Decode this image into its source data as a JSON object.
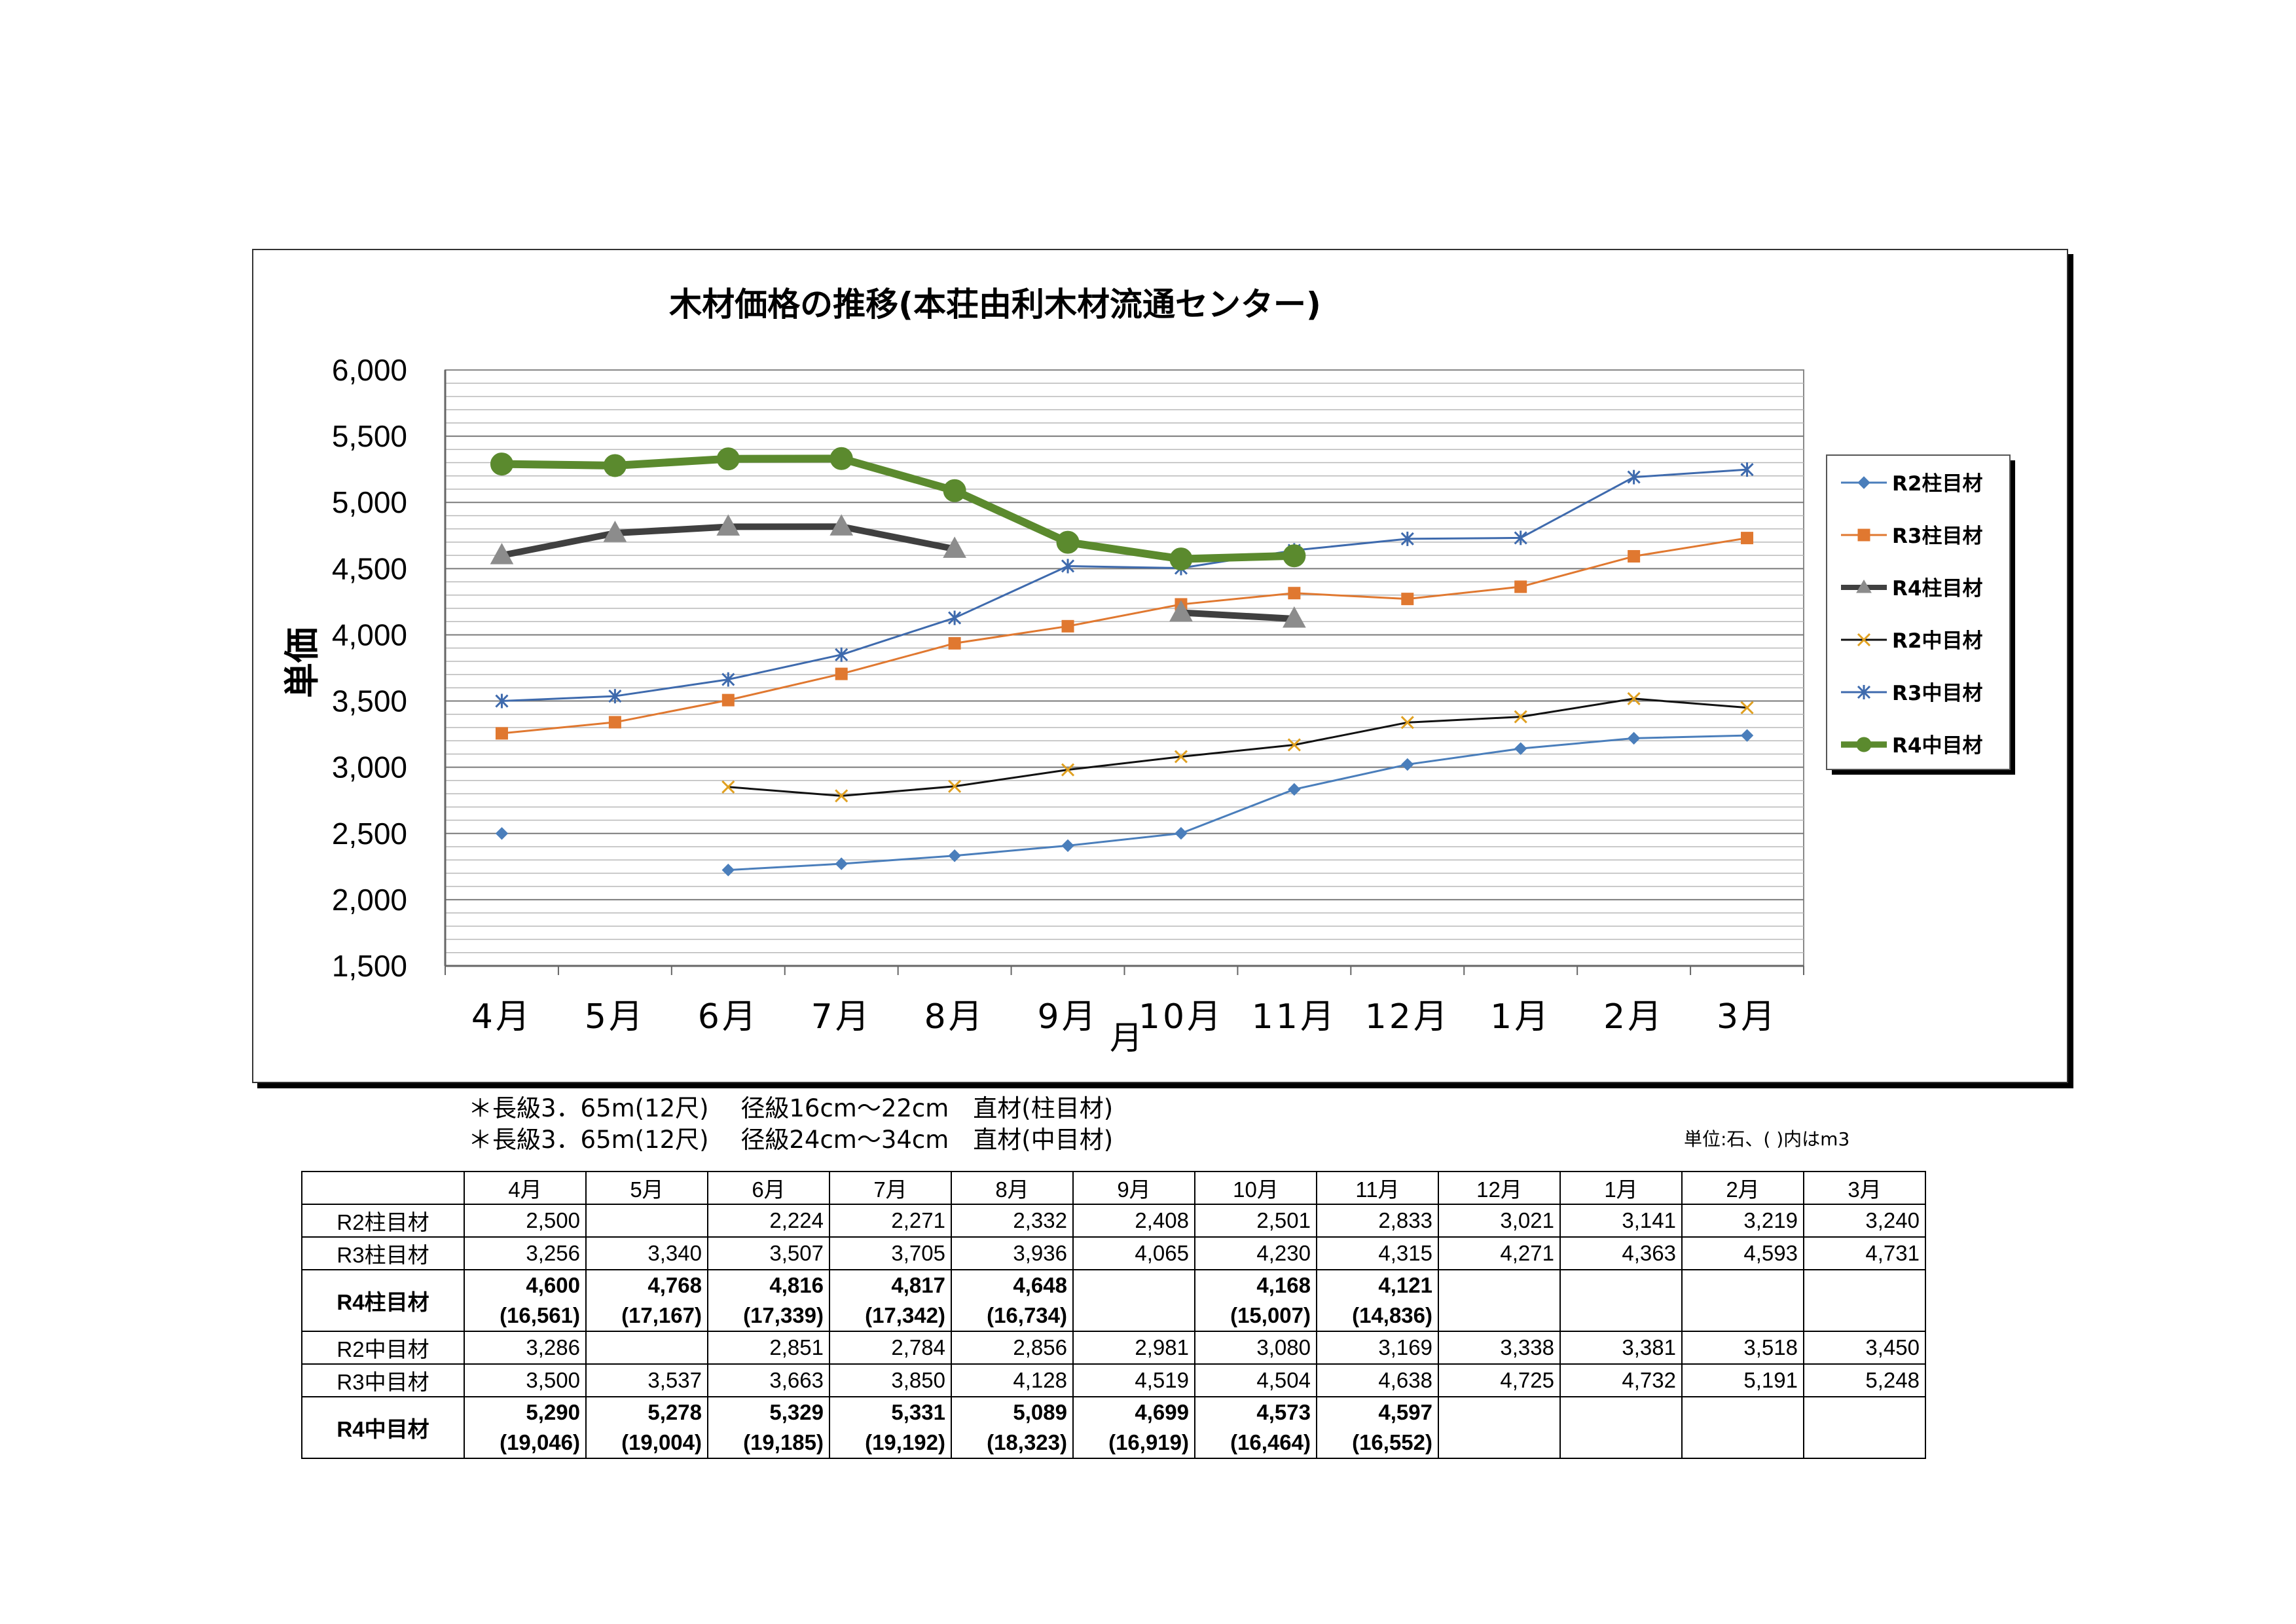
{
  "chart_data": {
    "type": "line",
    "title": "木材価格の推移(本荘由利木材流通センター)",
    "xlabel": "月",
    "ylabel": "単価",
    "ylim": [
      1500,
      6000
    ],
    "yticks": [
      "6,000",
      "5,500",
      "5,000",
      "4,500",
      "4,000",
      "3,500",
      "3,000",
      "2,500",
      "2,000",
      "1,500"
    ],
    "categories": [
      "4月",
      "5月",
      "6月",
      "7月",
      "8月",
      "9月",
      "10月",
      "11月",
      "12月",
      "1月",
      "2月",
      "3月"
    ],
    "grid": true,
    "legend_position": "right",
    "series": [
      {
        "name": "R2柱目材",
        "color": "#4a7ebb",
        "marker": "diamond",
        "values": [
          2500,
          null,
          2224,
          2271,
          2332,
          2408,
          2501,
          2833,
          3021,
          3141,
          3219,
          3240
        ]
      },
      {
        "name": "R3柱目材",
        "color": "#e07830",
        "marker": "square",
        "values": [
          3256,
          3340,
          3507,
          3705,
          3936,
          4065,
          4230,
          4315,
          4271,
          4363,
          4593,
          4731
        ]
      },
      {
        "name": "R4柱目材",
        "color": "#404040",
        "marker": "triangle",
        "values": [
          4600,
          4768,
          4816,
          4817,
          4648,
          null,
          4168,
          4121,
          null,
          null,
          null,
          null
        ]
      },
      {
        "name": "R2中目材",
        "color": "#111111",
        "marker": "x",
        "values": [
          null,
          null,
          2851,
          2784,
          2856,
          2981,
          3080,
          3169,
          3338,
          3381,
          3518,
          3450
        ]
      },
      {
        "name": "R3中目材",
        "color": "#3e6aad",
        "marker": "star",
        "values": [
          3500,
          3537,
          3663,
          3850,
          4128,
          4519,
          4504,
          4638,
          4725,
          4732,
          5191,
          5248
        ]
      },
      {
        "name": "R4中目材",
        "color": "#5b8a2e",
        "marker": "circle",
        "values": [
          5290,
          5278,
          5329,
          5331,
          5089,
          4699,
          4573,
          4597,
          null,
          null,
          null,
          null
        ]
      }
    ]
  },
  "notes": [
    "＊長級3．65m(12尺)　 径級16cm～22cm　直材(柱目材)",
    "＊長級3．65m(12尺)　 径級24cm～34cm　直材(中目材)"
  ],
  "unit_note": "単位:石、( )内はm3",
  "table": {
    "headers": [
      "",
      "4月",
      "5月",
      "6月",
      "7月",
      "8月",
      "9月",
      "10月",
      "11月",
      "12月",
      "1月",
      "2月",
      "3月"
    ],
    "rows": [
      {
        "label": "R2柱目材",
        "bold": false,
        "cells": [
          [
            "2,500"
          ],
          [
            ""
          ],
          [
            "2,224"
          ],
          [
            "2,271"
          ],
          [
            "2,332"
          ],
          [
            "2,408"
          ],
          [
            "2,501"
          ],
          [
            "2,833"
          ],
          [
            "3,021"
          ],
          [
            "3,141"
          ],
          [
            "3,219"
          ],
          [
            "3,240"
          ]
        ]
      },
      {
        "label": "R3柱目材",
        "bold": false,
        "cells": [
          [
            "3,256"
          ],
          [
            "3,340"
          ],
          [
            "3,507"
          ],
          [
            "3,705"
          ],
          [
            "3,936"
          ],
          [
            "4,065"
          ],
          [
            "4,230"
          ],
          [
            "4,315"
          ],
          [
            "4,271"
          ],
          [
            "4,363"
          ],
          [
            "4,593"
          ],
          [
            "4,731"
          ]
        ]
      },
      {
        "label": "R4柱目材",
        "bold": true,
        "cells": [
          [
            "4,600",
            "(16,561)"
          ],
          [
            "4,768",
            "(17,167)"
          ],
          [
            "4,816",
            "(17,339)"
          ],
          [
            "4,817",
            "(17,342)"
          ],
          [
            "4,648",
            "(16,734)"
          ],
          [
            "",
            ""
          ],
          [
            "4,168",
            "(15,007)"
          ],
          [
            "4,121",
            "(14,836)"
          ],
          [
            "",
            ""
          ],
          [
            "",
            ""
          ],
          [
            "",
            ""
          ],
          [
            "",
            ""
          ]
        ]
      },
      {
        "label": "R2中目材",
        "bold": false,
        "cells": [
          [
            "3,286"
          ],
          [
            ""
          ],
          [
            "2,851"
          ],
          [
            "2,784"
          ],
          [
            "2,856"
          ],
          [
            "2,981"
          ],
          [
            "3,080"
          ],
          [
            "3,169"
          ],
          [
            "3,338"
          ],
          [
            "3,381"
          ],
          [
            "3,518"
          ],
          [
            "3,450"
          ]
        ]
      },
      {
        "label": "R3中目材",
        "bold": false,
        "cells": [
          [
            "3,500"
          ],
          [
            "3,537"
          ],
          [
            "3,663"
          ],
          [
            "3,850"
          ],
          [
            "4,128"
          ],
          [
            "4,519"
          ],
          [
            "4,504"
          ],
          [
            "4,638"
          ],
          [
            "4,725"
          ],
          [
            "4,732"
          ],
          [
            "5,191"
          ],
          [
            "5,248"
          ]
        ]
      },
      {
        "label": "R4中目材",
        "bold": true,
        "cells": [
          [
            "5,290",
            "(19,046)"
          ],
          [
            "5,278",
            "(19,004)"
          ],
          [
            "5,329",
            "(19,185)"
          ],
          [
            "5,331",
            "(19,192)"
          ],
          [
            "5,089",
            "(18,323)"
          ],
          [
            "4,699",
            "(16,919)"
          ],
          [
            "4,573",
            "(16,464)"
          ],
          [
            "4,597",
            "(16,552)"
          ],
          [
            "",
            ""
          ],
          [
            "",
            ""
          ],
          [
            "",
            ""
          ],
          [
            "",
            ""
          ]
        ]
      }
    ]
  }
}
